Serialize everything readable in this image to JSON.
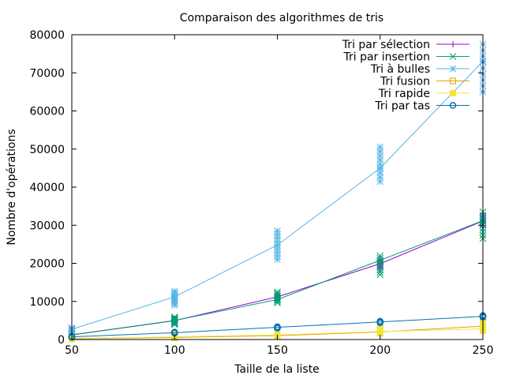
{
  "chart_data": {
    "type": "line",
    "title": "Comparaison des algorithmes de tris",
    "xlabel": "Taille de la liste",
    "ylabel": "Nombre d'opérations",
    "xlim": [
      50,
      250
    ],
    "ylim": [
      0,
      80000
    ],
    "x_ticks": [
      50,
      100,
      150,
      200,
      250
    ],
    "y_ticks": [
      0,
      10000,
      20000,
      30000,
      40000,
      50000,
      60000,
      70000,
      80000
    ],
    "grid": false,
    "legend_position": "top-right",
    "x": [
      50,
      100,
      150,
      200,
      250
    ],
    "series": [
      {
        "name": "Tri par sélection",
        "color": "#9400d3",
        "marker": "plus",
        "values": [
          1200,
          4950,
          11200,
          19900,
          31100
        ],
        "scatter": [
          [
            1000,
            1400
          ],
          [
            4500,
            5400
          ],
          [
            10400,
            11900
          ],
          [
            18500,
            21000
          ],
          [
            29500,
            33000
          ]
        ]
      },
      {
        "name": "Tri par insertion",
        "color": "#009e73",
        "marker": "cross",
        "values": [
          1250,
          5000,
          10500,
          20800,
          31200
        ],
        "scatter": [
          [
            700,
            1700
          ],
          [
            3900,
            5900
          ],
          [
            9600,
            12500
          ],
          [
            17000,
            22000
          ],
          [
            26500,
            33500
          ]
        ]
      },
      {
        "name": "Tri à bulles",
        "color": "#56b4e9",
        "marker": "star",
        "values": [
          2700,
          11200,
          24800,
          45000,
          73000
        ],
        "scatter": [
          [
            1800,
            3100
          ],
          [
            9000,
            12700
          ],
          [
            21000,
            28500
          ],
          [
            41500,
            50500
          ],
          [
            65000,
            77500
          ]
        ]
      },
      {
        "name": "Tri fusion",
        "color": "#e69f00",
        "marker": "square",
        "values": [
          220,
          550,
          1000,
          2000,
          3500
        ],
        "scatter": [
          [
            150,
            500
          ],
          [
            450,
            900
          ],
          [
            800,
            1700
          ],
          [
            1700,
            3100
          ],
          [
            2700,
            4800
          ]
        ]
      },
      {
        "name": "Tri rapide",
        "color": "#f0e442",
        "marker": "filled-square",
        "values": [
          250,
          700,
          1200,
          2100,
          2800
        ],
        "scatter": [
          [
            150,
            500
          ],
          [
            500,
            1300
          ],
          [
            900,
            2000
          ],
          [
            1600,
            3000
          ],
          [
            2300,
            4300
          ]
        ]
      },
      {
        "name": "Tri par tas",
        "color": "#0072b2",
        "marker": "circle",
        "values": [
          700,
          1800,
          3200,
          4600,
          6100
        ],
        "scatter": [
          [
            600,
            800
          ],
          [
            1700,
            1950
          ],
          [
            3000,
            3350
          ],
          [
            4400,
            4800
          ],
          [
            5900,
            6300
          ]
        ]
      }
    ]
  }
}
